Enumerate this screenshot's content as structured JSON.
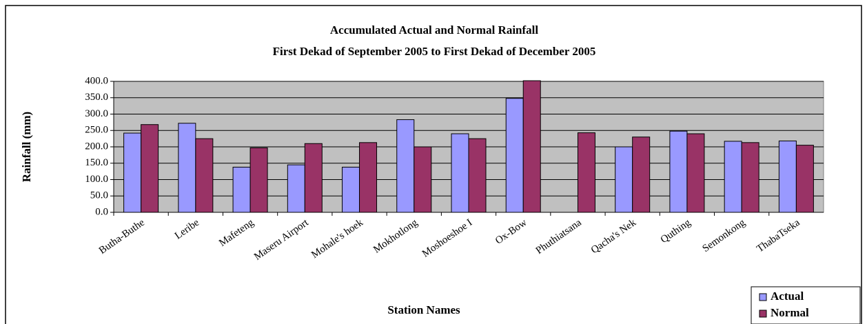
{
  "chart_data": {
    "type": "bar",
    "title": "Accumulated Actual and Normal Rainfall",
    "subtitle": "First Dekad of September 2005 to First Dekad of December 2005",
    "x_label": "Station Names",
    "y_label": "Rainfall (mm)",
    "categories": [
      "Butha-Buthe",
      "Leribe",
      "Mafeteng",
      "Maseru Airport",
      "Mohale's hoek",
      "Mokhotlong",
      "Moshoeshoe I",
      "Ox-Bow",
      "Phuthiatsana",
      "Qacha's Nek",
      "Quthing",
      "Semonkong",
      "ThabaTseka"
    ],
    "series": [
      {
        "name": "Actual",
        "color": "#9999ff",
        "values": [
          242,
          272,
          138,
          145,
          138,
          283,
          240,
          348,
          null,
          200,
          248,
          217,
          218
        ]
      },
      {
        "name": "Normal",
        "color": "#993366",
        "values": [
          268,
          225,
          197,
          210,
          213,
          200,
          225,
          402,
          243,
          230,
          240,
          213,
          205
        ]
      }
    ],
    "ylim": [
      0,
      400
    ],
    "yticks": [
      {
        "value": 0,
        "label": "0.0"
      },
      {
        "value": 50,
        "label": "50.0"
      },
      {
        "value": 100,
        "label": "100.0"
      },
      {
        "value": 150,
        "label": "150.0"
      },
      {
        "value": 200,
        "label": "200.0"
      },
      {
        "value": 250,
        "label": "250.0"
      },
      {
        "value": 300,
        "label": "300.0"
      },
      {
        "value": 350,
        "label": "350.0"
      },
      {
        "value": 400,
        "label": "400.0"
      }
    ],
    "grid": true,
    "legend": "bottom-right"
  }
}
